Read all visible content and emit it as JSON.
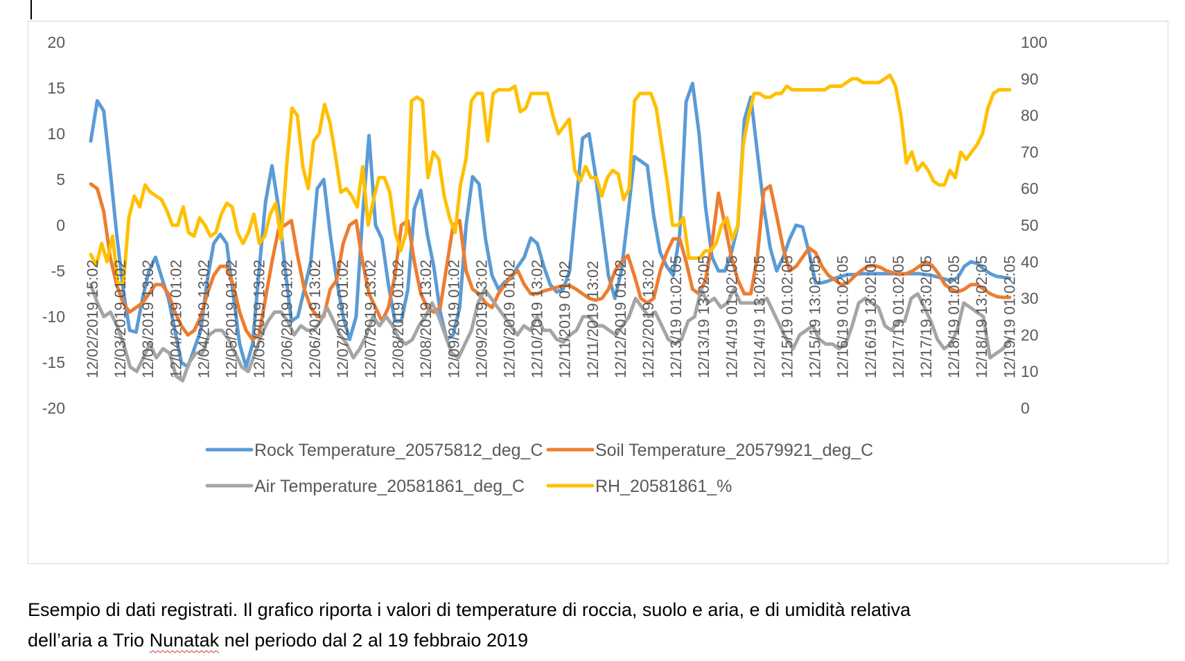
{
  "caption": {
    "line1": "Esempio di dati registrati. Il grafico riporta i valori di temperature di roccia, suolo e aria, e di umidità relativa",
    "line2_prefix": "dell’aria a Trio ",
    "line2_flagged": "Nunatak",
    "line2_suffix": " nel periodo dal 2 al 19 febbraio 2019"
  },
  "chart_data": {
    "type": "line",
    "title": "",
    "xlabel": "",
    "ylabel": "",
    "ylim": [
      -20,
      20
    ],
    "yticks": [
      "20",
      "15",
      "10",
      "5",
      "0",
      "-5",
      "-10",
      "-15",
      "-20"
    ],
    "y2lim": [
      0,
      100
    ],
    "y2ticks": [
      "100",
      "90",
      "80",
      "70",
      "60",
      "50",
      "40",
      "30",
      "20",
      "10",
      "0"
    ],
    "grid": false,
    "legend_position": "bottom",
    "x_tick_labels": [
      "12/02/2019 15:02",
      "12/03/2019 01:02",
      "12/03/2019 13:02",
      "12/04/2019 01:02",
      "12/04/2019 13:02",
      "12/05/2019 01:02",
      "12/05/2019 13:02",
      "12/06/2019 01:02",
      "12/06/2019 13:02",
      "12/07/2019 01:02",
      "12/07/2019 13:02",
      "12/08/2019 01:02",
      "12/08/2019 13:02",
      "12/09/2019 01:02",
      "12/09/2019 13:02",
      "12/10/2019 01:02",
      "12/10/2019 13:02",
      "12/11/2019 01:02",
      "12/11/2019 13:02",
      "12/12/2019 01:02",
      "12/12/2019 13:02",
      "12/13/19 01:02:05",
      "12/13/19 13:02:05",
      "12/14/19 01:02:05",
      "12/14/19 13:02:05",
      "12/15/19 01:02:05",
      "12/15/19 13:02:05",
      "12/16/19 01:02:05",
      "12/16/19 13:02:05",
      "12/17/19 01:02:05",
      "12/17/19 13:02:05",
      "12/18/19 01:02:05",
      "12/18/19 13:02:05",
      "12/19/19 01:02:05"
    ],
    "series": [
      {
        "name": "Rock Temperature_20575812_deg_C",
        "color": "#5b9bd5",
        "axis": "left",
        "values": [
          9.2,
          13.6,
          12.5,
          6,
          -1,
          -7,
          -11.5,
          -11.7,
          -8,
          -5,
          -3.5,
          -5.8,
          -8,
          -11.5,
          -15,
          -15.5,
          -13.5,
          -11.5,
          -6,
          -2,
          -1,
          -2,
          -7.5,
          -13,
          -15.5,
          -13,
          -5,
          2.5,
          6.5,
          2,
          -4.5,
          -10.5,
          -10,
          -7,
          -4,
          4,
          5,
          -1,
          -6,
          -10,
          -12.5,
          -10,
          1,
          9.8,
          0,
          -1.5,
          -6.5,
          -10.5,
          -10.5,
          -7,
          1.8,
          3.8,
          -1,
          -4.5,
          -9.5,
          -12.5,
          -12,
          -9,
          0,
          5.3,
          4.5,
          -1.5,
          -5.5,
          -7,
          -6.2,
          -5.8,
          -4.5,
          -3.5,
          -1.4,
          -2,
          -4.5,
          -6.5,
          -7.3,
          -7,
          -5,
          2.5,
          9.5,
          10,
          5.5,
          0,
          -5.5,
          -8,
          -5,
          1,
          7.5,
          7,
          6.5,
          1,
          -3,
          -4.5,
          -5.5,
          -1,
          13.5,
          15.5,
          10,
          2,
          -3.5,
          -5,
          -5,
          -3,
          0,
          11.5,
          14,
          8,
          2,
          -2.5,
          -5,
          -3.5,
          -1.5,
          0,
          -0.2,
          -3,
          -6.3,
          -6.3,
          -6.1,
          -5.8,
          -5.6,
          -5.4,
          -5.4,
          -5.3,
          -5.3,
          -5.3,
          -5.3,
          -5.3,
          -5.3,
          -5.3,
          -5.3,
          -5.3,
          -5.3,
          -5.4,
          -5.5,
          -5.7,
          -5.9,
          -6.1,
          -5.7,
          -4.5,
          -4,
          -4.2,
          -4.8,
          -5.3,
          -5.6,
          -5.7,
          -5.8
        ]
      },
      {
        "name": "Soil Temperature_20579921_deg_C",
        "color": "#ed7d31",
        "axis": "left",
        "values": [
          4.5,
          4,
          1.5,
          -3.5,
          -6.5,
          -8.5,
          -9.5,
          -9,
          -8.5,
          -7.5,
          -6.5,
          -6.5,
          -7.5,
          -9.5,
          -11,
          -12,
          -11.5,
          -10,
          -7.5,
          -5.5,
          -4.5,
          -4.5,
          -6.5,
          -9.5,
          -11.5,
          -12.5,
          -12,
          -8,
          -4,
          -0.5,
          0,
          0.5,
          -3.5,
          -7,
          -9,
          -10,
          -10,
          -7,
          -6,
          -2,
          0,
          0.5,
          -4,
          -7.5,
          -9,
          -10.5,
          -9,
          -5.5,
          0,
          0.5,
          -4,
          -7.5,
          -9,
          -9.5,
          -9,
          -4.5,
          0,
          0.5,
          -5,
          -7,
          -7.5,
          -8.5,
          -9,
          -7.5,
          -6.5,
          -5.5,
          -5,
          -6.5,
          -7.5,
          -7.5,
          -7.2,
          -7,
          -6.8,
          -6.6,
          -6.6,
          -7,
          -7.5,
          -8,
          -8.2,
          -8,
          -7,
          -5,
          -4,
          -3.3,
          -5.5,
          -8,
          -8.5,
          -8,
          -5,
          -3,
          -1.5,
          -1.5,
          -4,
          -7,
          -7.5,
          -6,
          -2,
          3.5,
          0,
          -3.5,
          -6,
          -7.5,
          -7.5,
          -3.5,
          3.8,
          4.3,
          1,
          -2.5,
          -5,
          -4.5,
          -3.5,
          -2.5,
          -3,
          -4.5,
          -5.5,
          -6,
          -6.5,
          -6.3,
          -5.6,
          -5,
          -4.5,
          -4.4,
          -4.6,
          -5,
          -5.2,
          -5.4,
          -5.3,
          -5,
          -4.5,
          -4,
          -4.4,
          -5.3,
          -6.5,
          -7,
          -7.3,
          -7,
          -6.5,
          -6.5,
          -7,
          -7.5,
          -7.8,
          -7.9,
          -7.9
        ]
      },
      {
        "name": "Air Temperature_20581861_deg_C",
        "color": "#a5a5a5",
        "axis": "left",
        "values": [
          -6.5,
          -8.5,
          -10,
          -9.5,
          -11,
          -13,
          -15.5,
          -16,
          -14.5,
          -13,
          -14.5,
          -13.5,
          -14,
          -16.5,
          -17,
          -15,
          -14,
          -14,
          -12,
          -11.5,
          -11.5,
          -12.5,
          -14,
          -15.5,
          -16,
          -14,
          -12,
          -10.5,
          -9.5,
          -9.5,
          -10.5,
          -12,
          -11,
          -11.5,
          -11.5,
          -10.5,
          -9,
          -10.5,
          -12,
          -13,
          -14.5,
          -13.5,
          -12,
          -10,
          -11,
          -10,
          -11,
          -12.5,
          -13,
          -12.5,
          -11,
          -10,
          -8.5,
          -10,
          -12,
          -14,
          -14.5,
          -13,
          -11.5,
          -8.5,
          -7,
          -8,
          -9,
          -10,
          -11,
          -12,
          -11,
          -11.5,
          -10,
          -11.5,
          -11.5,
          -12.5,
          -12.8,
          -12,
          -11.5,
          -10,
          -10,
          -11,
          -11,
          -11.5,
          -12,
          -11,
          -10,
          -8,
          -9,
          -10,
          -9.5,
          -11,
          -12.5,
          -13,
          -12.5,
          -10.5,
          -10,
          -7,
          -8.5,
          -8,
          -9,
          -8.5,
          -7,
          -8.5,
          -8.5,
          -8.5,
          -8.5,
          -8,
          -9.5,
          -11,
          -12.5,
          -13.5,
          -12,
          -11.5,
          -11,
          -12.5,
          -13,
          -13,
          -13.5,
          -13,
          -11,
          -8.5,
          -8,
          -8.5,
          -9,
          -11,
          -11.5,
          -10.5,
          -10.5,
          -8,
          -7.5,
          -9,
          -10.5,
          -12.5,
          -13.5,
          -13,
          -11.5,
          -8.5,
          -9,
          -9.5,
          -10,
          -14.5,
          -14,
          -13.5,
          -12.5
        ]
      },
      {
        "name": "RH_20581861_%",
        "color": "#ffc000",
        "axis": "right",
        "values": [
          42,
          39,
          45,
          40,
          47,
          34,
          34,
          52,
          58,
          55,
          61,
          59,
          58,
          57,
          54,
          50,
          50,
          55,
          48,
          47,
          52,
          50,
          47,
          48,
          53,
          56,
          55,
          48,
          45,
          48,
          53,
          45,
          47,
          53,
          56,
          46,
          66,
          82,
          80,
          66,
          60,
          73,
          75,
          83,
          78,
          69,
          59,
          60,
          58,
          55,
          66,
          50,
          57,
          63,
          63,
          59,
          48,
          43,
          48,
          84,
          85,
          84,
          63,
          70,
          68,
          58,
          52,
          48,
          61,
          68,
          84,
          86,
          86,
          73,
          86,
          87,
          87,
          87,
          88,
          81,
          82,
          86,
          86,
          86,
          86,
          80,
          75,
          77,
          79,
          65,
          62,
          66,
          63,
          63,
          58,
          63,
          65,
          64,
          57,
          60,
          84,
          86,
          86,
          86,
          82,
          72,
          62,
          50,
          50,
          52,
          41,
          41,
          41,
          43,
          43,
          45,
          50,
          52,
          46,
          50,
          72,
          80,
          86,
          86,
          85,
          85,
          86,
          86,
          88,
          87,
          87,
          87,
          87,
          87,
          87,
          87,
          88,
          88,
          88,
          89,
          90,
          90,
          89,
          89,
          89,
          89,
          90,
          91,
          88,
          80,
          67,
          70,
          65,
          67,
          65,
          62,
          61,
          61,
          65,
          63,
          70,
          68,
          70,
          72,
          75,
          82,
          86,
          87,
          87,
          87
        ]
      }
    ]
  }
}
